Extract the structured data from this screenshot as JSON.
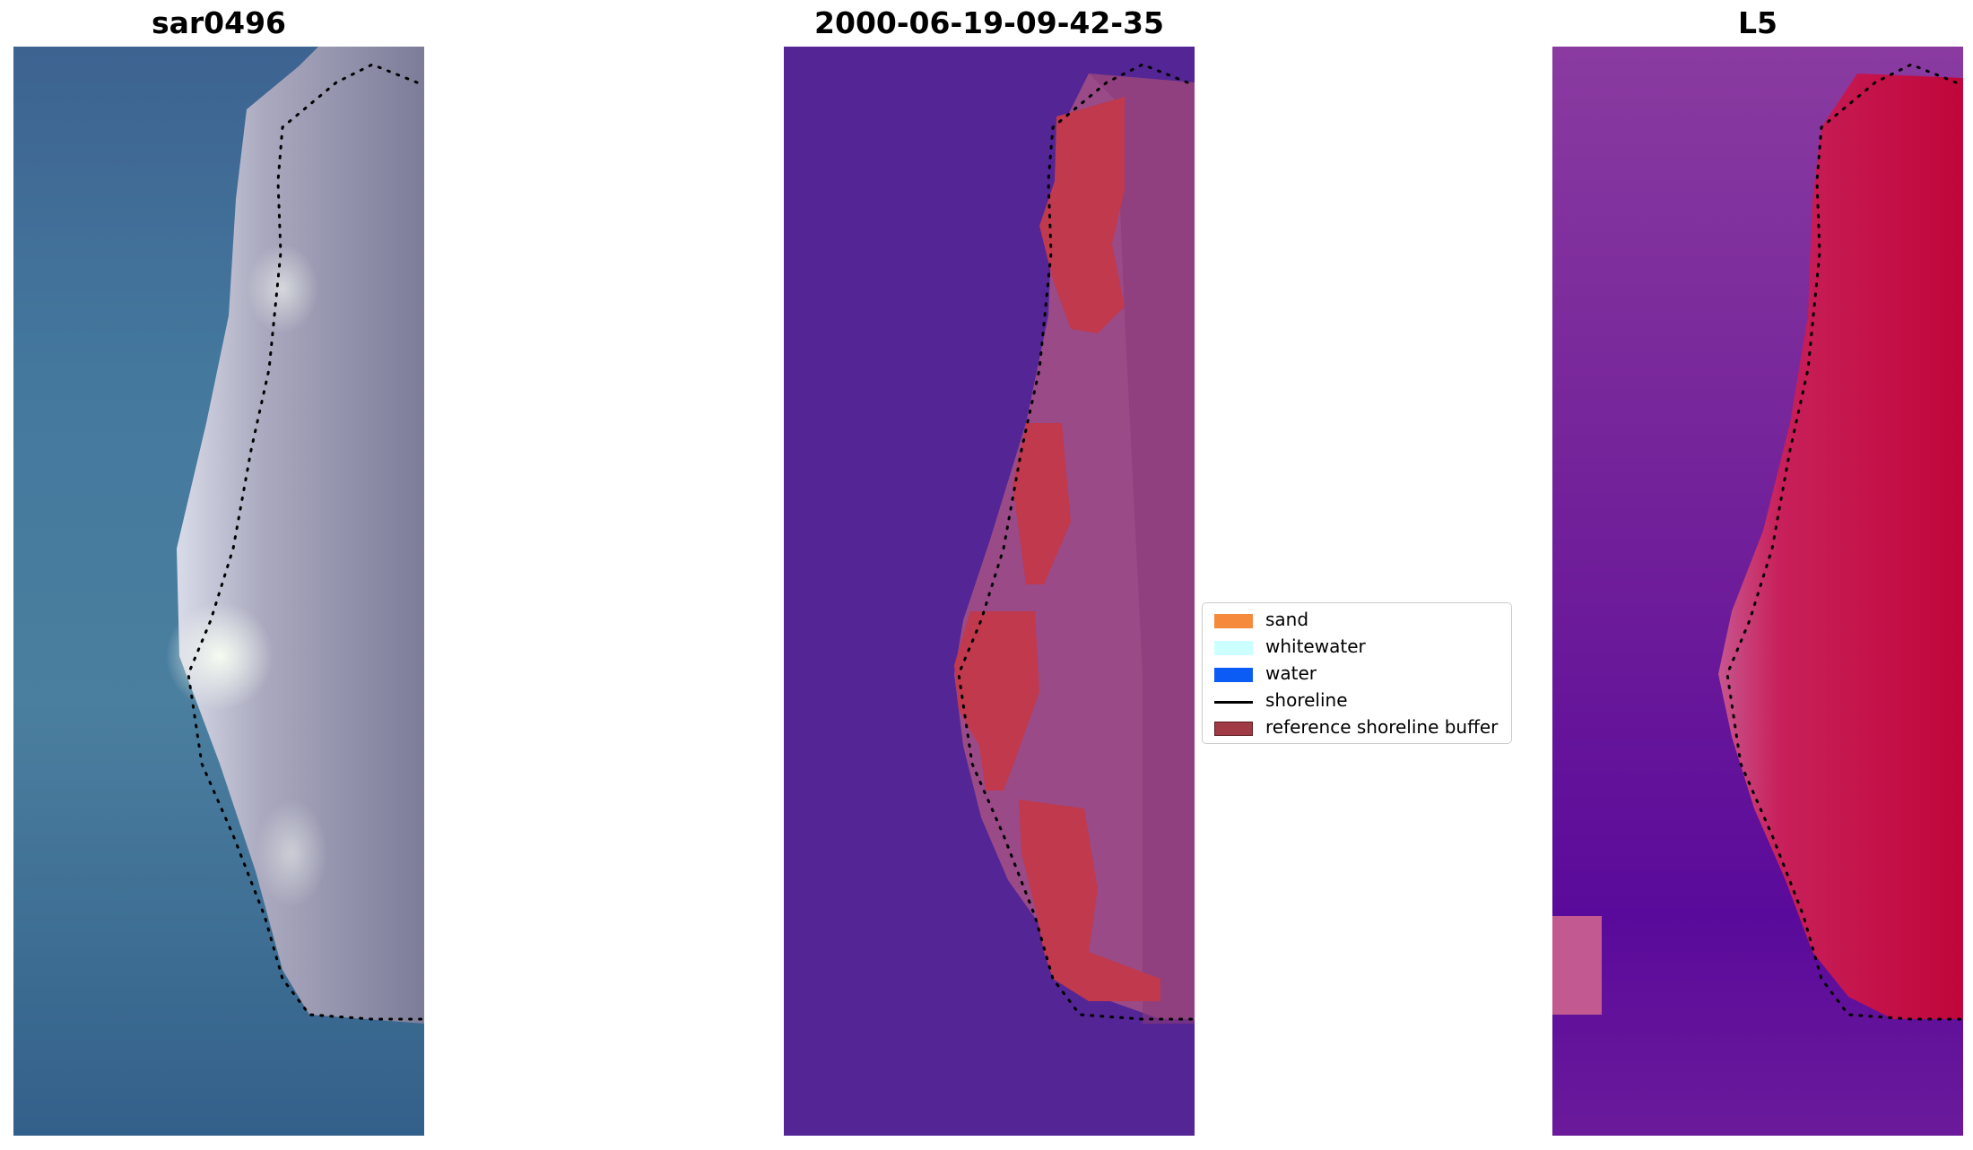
{
  "panels": [
    {
      "title": "sar0496",
      "image": "rgb-satellite-image"
    },
    {
      "title": "2000-06-19-09-42-35",
      "image": "classified-image"
    },
    {
      "title": "L5",
      "image": "index-image"
    }
  ],
  "legend": {
    "items": [
      {
        "label": "sand",
        "color": "#f58a3c",
        "kind": "patch"
      },
      {
        "label": "whitewater",
        "color": "#ccffff",
        "kind": "patch"
      },
      {
        "label": "water",
        "color": "#0a5cf5",
        "kind": "patch"
      },
      {
        "label": "shoreline",
        "color": "#000000",
        "kind": "line"
      },
      {
        "label": "reference shoreline buffer",
        "color": "#a03a45",
        "kind": "patch"
      }
    ]
  },
  "colors": {
    "rgb_water": "#3f7398",
    "rgb_land": "#8c8aa8",
    "classified_background": "#532595",
    "classified_buffer": "#b83c55",
    "classified_land": "#9a4a87",
    "index_water": "#7a1f9a",
    "index_land": "#c20a3c"
  }
}
